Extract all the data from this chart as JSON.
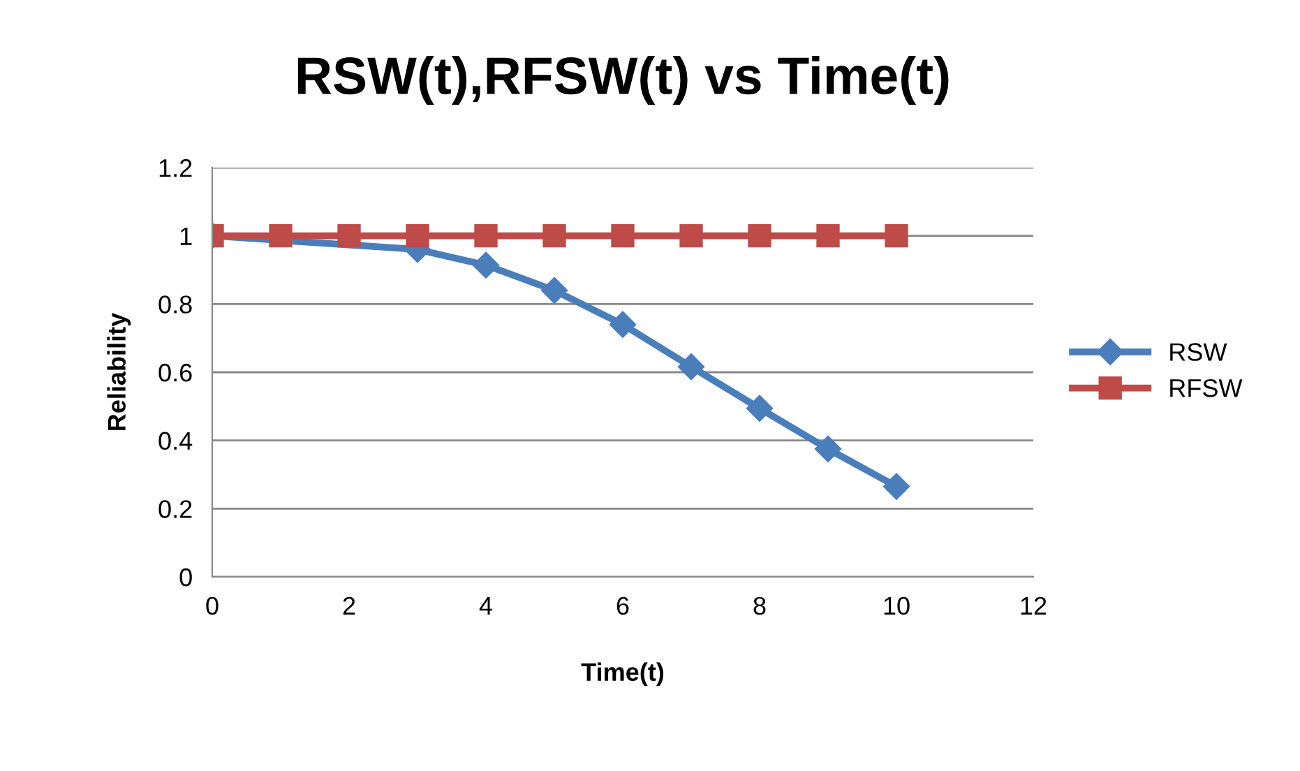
{
  "chart_data": {
    "type": "line",
    "title": "RSW(t),RFSW(t) vs Time(t)",
    "xlabel": "Time(t)",
    "ylabel": "Reliability",
    "x": [
      0,
      1,
      2,
      3,
      4,
      5,
      6,
      7,
      8,
      9,
      10
    ],
    "series": [
      {
        "name": "RSW",
        "color": "#4a7ebb",
        "marker": "diamond",
        "values": [
          1,
          null,
          null,
          0.96,
          0.914,
          0.84,
          0.74,
          0.616,
          0.494,
          0.375,
          0.265
        ]
      },
      {
        "name": "RFSW",
        "color": "#be4b48",
        "marker": "square",
        "values": [
          1,
          1,
          1,
          1,
          1,
          1,
          1,
          1,
          1,
          1,
          1
        ]
      }
    ],
    "xlim": [
      0,
      12
    ],
    "xticks": [
      0,
      2,
      4,
      6,
      8,
      10,
      12
    ],
    "ylim": [
      0,
      1.2
    ],
    "yticks": [
      0,
      0.2,
      0.4,
      0.6,
      0.8,
      1,
      1.2
    ],
    "grid": "y",
    "legend": "right"
  }
}
